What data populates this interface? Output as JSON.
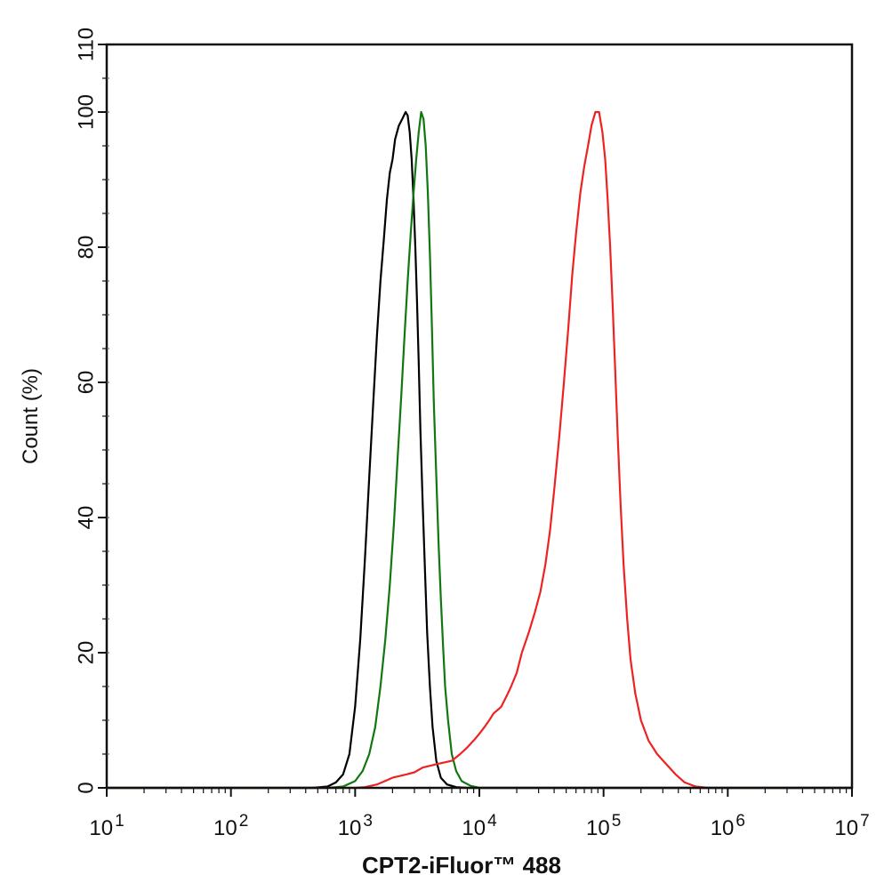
{
  "chart_data": {
    "type": "line",
    "xlabel": "CPT2-iFluor™ 488",
    "ylabel": "Count  (%)",
    "x_scale": "log10",
    "xlim": [
      10,
      10000000
    ],
    "ylim": [
      0,
      110
    ],
    "x_ticks": [
      {
        "value": 10,
        "base": "10",
        "exp": "1"
      },
      {
        "value": 100,
        "base": "10",
        "exp": "2"
      },
      {
        "value": 1000,
        "base": "10",
        "exp": "3"
      },
      {
        "value": 10000,
        "base": "10",
        "exp": "4"
      },
      {
        "value": 100000,
        "base": "10",
        "exp": "5"
      },
      {
        "value": 1000000,
        "base": "10",
        "exp": "6"
      },
      {
        "value": 10000000,
        "base": "10",
        "exp": "7"
      }
    ],
    "y_ticks": [
      0,
      20,
      40,
      60,
      80,
      100,
      110
    ],
    "grid": false,
    "legend": "none",
    "series": [
      {
        "color": "#000000",
        "points": [
          [
            10,
            0
          ],
          [
            450,
            0
          ],
          [
            600,
            0.2
          ],
          [
            700,
            0.8
          ],
          [
            800,
            2
          ],
          [
            900,
            5
          ],
          [
            1000,
            12
          ],
          [
            1100,
            22
          ],
          [
            1200,
            34
          ],
          [
            1300,
            46
          ],
          [
            1400,
            57
          ],
          [
            1500,
            67
          ],
          [
            1600,
            75
          ],
          [
            1700,
            81
          ],
          [
            1800,
            87
          ],
          [
            1900,
            91
          ],
          [
            2000,
            93
          ],
          [
            2100,
            96
          ],
          [
            2250,
            98
          ],
          [
            2400,
            99
          ],
          [
            2550,
            100
          ],
          [
            2650,
            99.5
          ],
          [
            2750,
            97
          ],
          [
            2850,
            93
          ],
          [
            2950,
            87
          ],
          [
            3050,
            80
          ],
          [
            3150,
            72
          ],
          [
            3250,
            63
          ],
          [
            3350,
            53
          ],
          [
            3500,
            42
          ],
          [
            3650,
            32
          ],
          [
            3800,
            23
          ],
          [
            4000,
            15
          ],
          [
            4200,
            9
          ],
          [
            4500,
            4
          ],
          [
            4900,
            1.5
          ],
          [
            5500,
            0.5
          ],
          [
            6500,
            0.1
          ],
          [
            8000,
            0
          ],
          [
            10000000,
            0
          ]
        ]
      },
      {
        "color": "#117711",
        "points": [
          [
            10,
            0
          ],
          [
            600,
            0
          ],
          [
            800,
            0.2
          ],
          [
            1000,
            1
          ],
          [
            1150,
            2.5
          ],
          [
            1300,
            5
          ],
          [
            1450,
            9
          ],
          [
            1600,
            15
          ],
          [
            1750,
            22
          ],
          [
            1900,
            30
          ],
          [
            2050,
            39
          ],
          [
            2200,
            49
          ],
          [
            2350,
            58
          ],
          [
            2500,
            67
          ],
          [
            2650,
            75
          ],
          [
            2800,
            82
          ],
          [
            2950,
            88
          ],
          [
            3100,
            93
          ],
          [
            3250,
            97
          ],
          [
            3400,
            100
          ],
          [
            3550,
            99
          ],
          [
            3700,
            95
          ],
          [
            3850,
            88
          ],
          [
            4000,
            79
          ],
          [
            4150,
            68
          ],
          [
            4300,
            57
          ],
          [
            4500,
            46
          ],
          [
            4700,
            36
          ],
          [
            4900,
            28
          ],
          [
            5100,
            21
          ],
          [
            5300,
            15
          ],
          [
            5600,
            10
          ],
          [
            6000,
            5
          ],
          [
            6500,
            2.5
          ],
          [
            7200,
            1
          ],
          [
            8500,
            0.3
          ],
          [
            10000,
            0
          ],
          [
            10000000,
            0
          ]
        ]
      },
      {
        "color": "#ee2222",
        "points": [
          [
            10,
            0
          ],
          [
            1000,
            0
          ],
          [
            1200,
            0.1
          ],
          [
            1500,
            0.5
          ],
          [
            2000,
            1.5
          ],
          [
            2600,
            2
          ],
          [
            3000,
            2.3
          ],
          [
            3500,
            3
          ],
          [
            4500,
            3.5
          ],
          [
            6000,
            4
          ],
          [
            7000,
            5
          ],
          [
            8000,
            6
          ],
          [
            9000,
            7
          ],
          [
            10000,
            8
          ],
          [
            11000,
            9
          ],
          [
            12000,
            10
          ],
          [
            13000,
            11
          ],
          [
            15000,
            12
          ],
          [
            17000,
            14
          ],
          [
            18000,
            15
          ],
          [
            20000,
            17
          ],
          [
            22000,
            20
          ],
          [
            25000,
            23
          ],
          [
            28000,
            26
          ],
          [
            31000,
            29
          ],
          [
            34000,
            33
          ],
          [
            37000,
            38
          ],
          [
            40000,
            44
          ],
          [
            44000,
            52
          ],
          [
            48000,
            60
          ],
          [
            52000,
            68
          ],
          [
            56000,
            76
          ],
          [
            60000,
            82
          ],
          [
            65000,
            88
          ],
          [
            70000,
            92
          ],
          [
            75000,
            95
          ],
          [
            80000,
            98
          ],
          [
            86000,
            100
          ],
          [
            92000,
            100
          ],
          [
            98000,
            97
          ],
          [
            103000,
            93
          ],
          [
            108000,
            87
          ],
          [
            113000,
            80
          ],
          [
            118000,
            72
          ],
          [
            124000,
            62
          ],
          [
            130000,
            52
          ],
          [
            137000,
            42
          ],
          [
            145000,
            33
          ],
          [
            155000,
            25
          ],
          [
            165000,
            19
          ],
          [
            180000,
            14
          ],
          [
            200000,
            10
          ],
          [
            230000,
            7
          ],
          [
            270000,
            5
          ],
          [
            320000,
            3.5
          ],
          [
            380000,
            2
          ],
          [
            450000,
            0.8
          ],
          [
            550000,
            0.2
          ],
          [
            700000,
            0
          ],
          [
            10000000,
            0
          ]
        ]
      }
    ]
  }
}
